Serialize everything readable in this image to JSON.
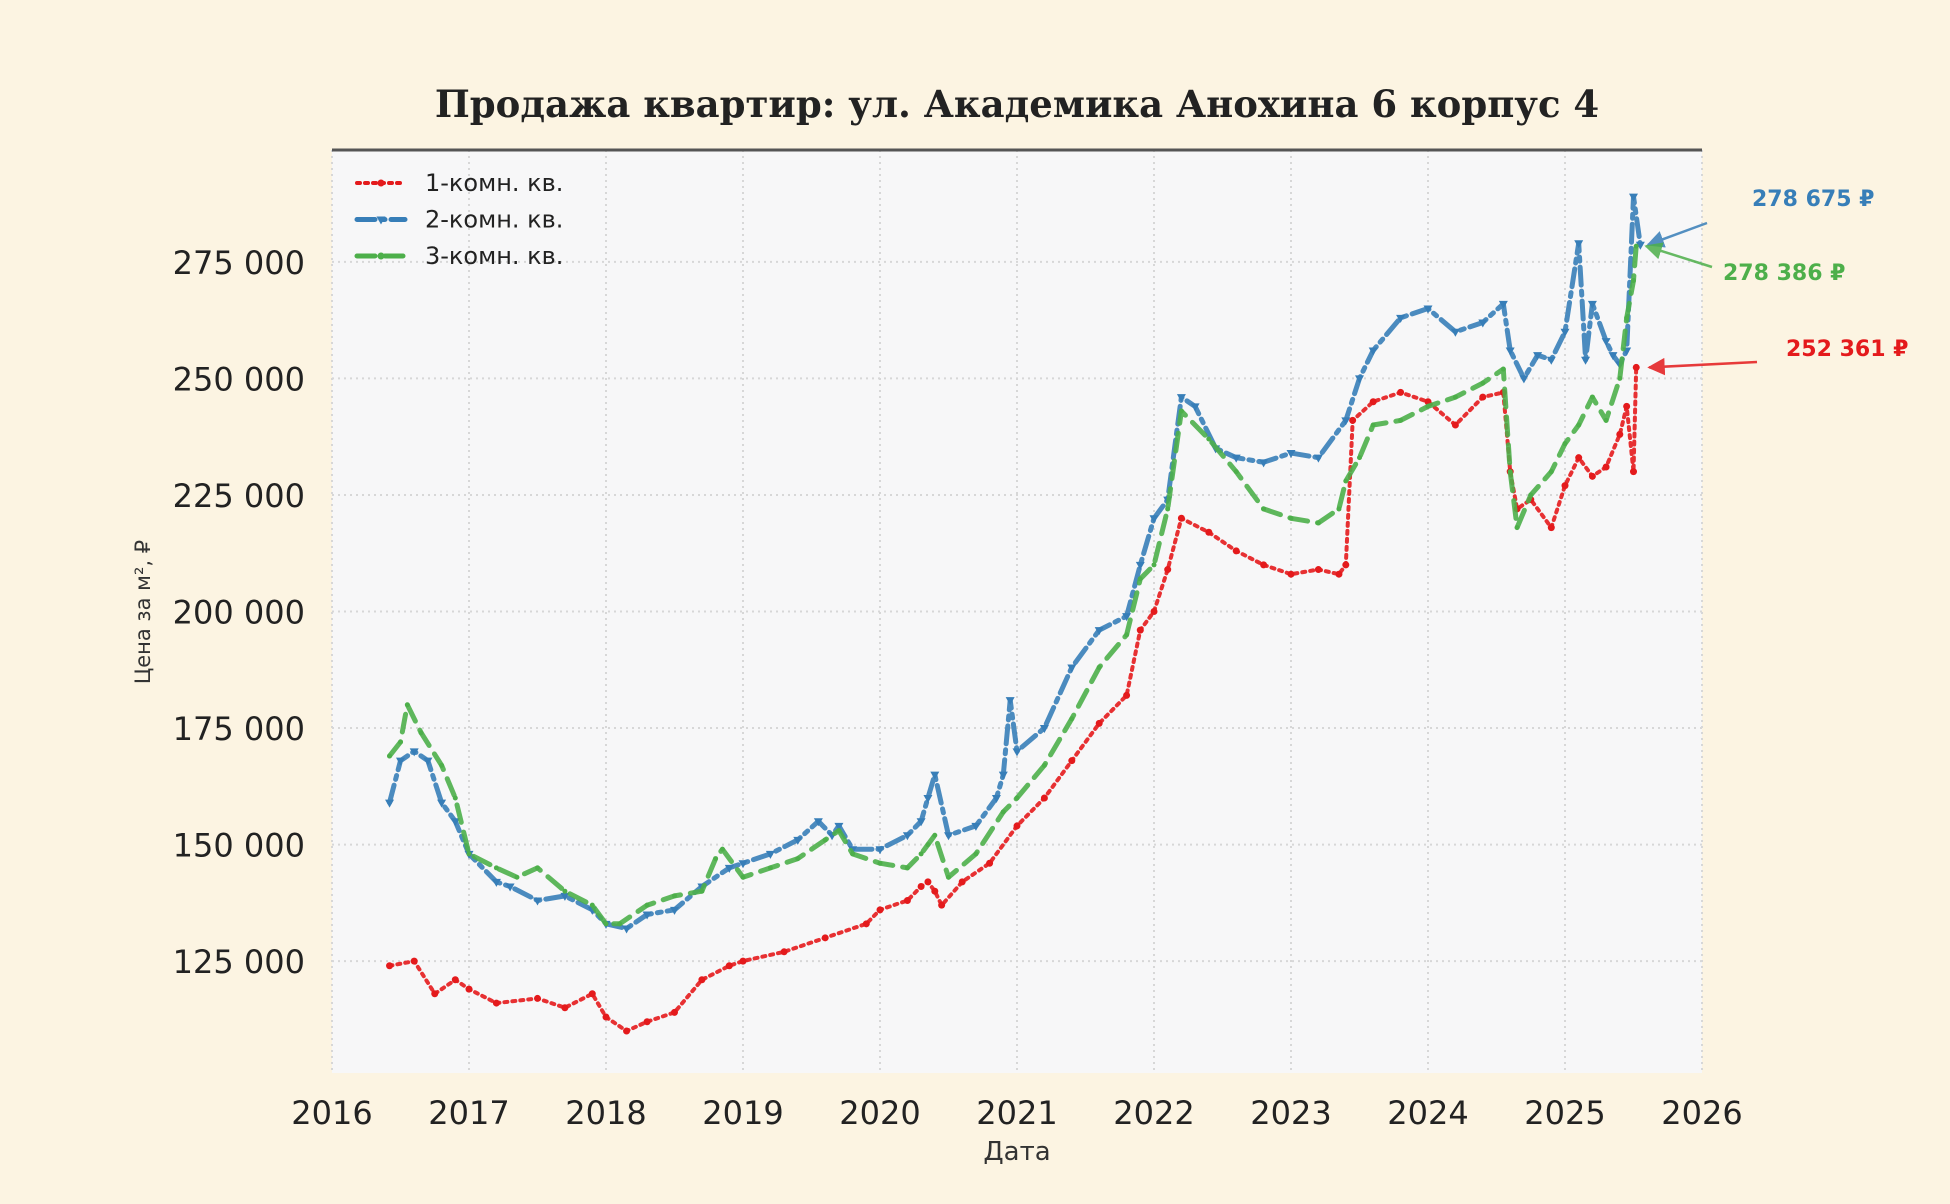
{
  "chart_data": {
    "type": "line",
    "title": "Продажа квартир: ул. Академика Анохина 6 корпус 4",
    "xlabel": "Дата",
    "ylabel": "Цена за м², ₽",
    "xlim": [
      2016.0,
      2026.0
    ],
    "ylim": [
      101000,
      299000
    ],
    "x_ticks": [
      "2016",
      "2017",
      "2018",
      "2019",
      "2020",
      "2021",
      "2022",
      "2023",
      "2024",
      "2025",
      "2026"
    ],
    "y_ticks": [
      "125 000",
      "150 000",
      "175 000",
      "200 000",
      "225 000",
      "250 000",
      "275 000"
    ],
    "grid": true,
    "legend_position": "top-left",
    "series": [
      {
        "name": "1-комн. кв.",
        "color": "#e41a1c",
        "style": "dotted",
        "x": [
          2016.42,
          2016.6,
          2016.75,
          2016.9,
          2017.0,
          2017.2,
          2017.5,
          2017.7,
          2017.9,
          2018.0,
          2018.15,
          2018.3,
          2018.5,
          2018.7,
          2018.9,
          2019.0,
          2019.3,
          2019.6,
          2019.9,
          2020.0,
          2020.2,
          2020.3,
          2020.35,
          2020.4,
          2020.45,
          2020.6,
          2020.8,
          2021.0,
          2021.2,
          2021.4,
          2021.6,
          2021.8,
          2021.9,
          2022.0,
          2022.1,
          2022.2,
          2022.4,
          2022.6,
          2022.8,
          2023.0,
          2023.2,
          2023.35,
          2023.4,
          2023.45,
          2023.6,
          2023.8,
          2024.0,
          2024.2,
          2024.4,
          2024.55,
          2024.6,
          2024.65,
          2024.75,
          2024.9,
          2025.0,
          2025.1,
          2025.2,
          2025.3,
          2025.4,
          2025.45,
          2025.5,
          2025.52
        ],
        "values": [
          124000,
          125000,
          118000,
          121000,
          119000,
          116000,
          117000,
          115000,
          118000,
          113000,
          110000,
          112000,
          114000,
          121000,
          124000,
          125000,
          127000,
          130000,
          133000,
          136000,
          138000,
          141000,
          142000,
          140000,
          137000,
          142000,
          146000,
          154000,
          160000,
          168000,
          176000,
          182000,
          196000,
          200000,
          209000,
          220000,
          217000,
          213000,
          210000,
          208000,
          209000,
          208000,
          210000,
          241000,
          245000,
          247000,
          245000,
          240000,
          246000,
          247000,
          230000,
          222000,
          224000,
          218000,
          227000,
          233000,
          229000,
          231000,
          238000,
          244000,
          230000,
          252361
        ]
      },
      {
        "name": "2-комн. кв.",
        "color": "#377eb8",
        "style": "dashdot",
        "x": [
          2016.42,
          2016.5,
          2016.6,
          2016.7,
          2016.8,
          2016.9,
          2017.0,
          2017.2,
          2017.3,
          2017.5,
          2017.7,
          2017.9,
          2018.0,
          2018.15,
          2018.3,
          2018.5,
          2018.7,
          2018.9,
          2019.0,
          2019.2,
          2019.4,
          2019.55,
          2019.65,
          2019.7,
          2019.8,
          2020.0,
          2020.2,
          2020.3,
          2020.35,
          2020.4,
          2020.5,
          2020.7,
          2020.85,
          2020.9,
          2020.95,
          2021.0,
          2021.2,
          2021.4,
          2021.6,
          2021.8,
          2021.9,
          2022.0,
          2022.1,
          2022.2,
          2022.3,
          2022.45,
          2022.6,
          2022.8,
          2023.0,
          2023.2,
          2023.4,
          2023.5,
          2023.6,
          2023.8,
          2024.0,
          2024.2,
          2024.4,
          2024.55,
          2024.6,
          2024.7,
          2024.8,
          2024.9,
          2025.0,
          2025.1,
          2025.15,
          2025.2,
          2025.3,
          2025.35,
          2025.4,
          2025.45,
          2025.5,
          2025.55
        ],
        "values": [
          159000,
          168000,
          170000,
          168000,
          159000,
          155000,
          148000,
          142000,
          141000,
          138000,
          139000,
          136000,
          133000,
          132000,
          135000,
          136000,
          141000,
          145000,
          146000,
          148000,
          151000,
          155000,
          152000,
          154000,
          149000,
          149000,
          152000,
          155000,
          160000,
          165000,
          152000,
          154000,
          160000,
          165000,
          181000,
          170000,
          175000,
          188000,
          196000,
          199000,
          210000,
          220000,
          224000,
          246000,
          244000,
          235000,
          233000,
          232000,
          234000,
          233000,
          241000,
          250000,
          256000,
          263000,
          265000,
          260000,
          262000,
          266000,
          256000,
          250000,
          255000,
          254000,
          260000,
          279000,
          254000,
          266000,
          258000,
          255000,
          253000,
          256000,
          289000,
          278675
        ]
      },
      {
        "name": "3-комн. кв.",
        "color": "#4daf4a",
        "style": "dashed",
        "x": [
          2016.42,
          2016.5,
          2016.55,
          2016.65,
          2016.8,
          2016.9,
          2017.0,
          2017.2,
          2017.35,
          2017.5,
          2017.7,
          2017.9,
          2018.0,
          2018.1,
          2018.3,
          2018.5,
          2018.7,
          2018.8,
          2018.85,
          2019.0,
          2019.2,
          2019.4,
          2019.6,
          2019.7,
          2019.8,
          2020.0,
          2020.2,
          2020.3,
          2020.35,
          2020.4,
          2020.5,
          2020.7,
          2020.9,
          2021.0,
          2021.2,
          2021.4,
          2021.6,
          2021.8,
          2021.9,
          2022.0,
          2022.1,
          2022.2,
          2022.4,
          2022.6,
          2022.8,
          2023.0,
          2023.2,
          2023.35,
          2023.4,
          2023.5,
          2023.6,
          2023.8,
          2024.0,
          2024.2,
          2024.4,
          2024.55,
          2024.6,
          2024.65,
          2024.75,
          2024.9,
          2025.0,
          2025.1,
          2025.2,
          2025.3,
          2025.4,
          2025.45,
          2025.5,
          2025.52
        ],
        "values": [
          169000,
          172000,
          180000,
          174000,
          167000,
          160000,
          148000,
          145000,
          143000,
          145000,
          140000,
          137000,
          133000,
          133000,
          137000,
          139000,
          140000,
          147000,
          149000,
          143000,
          145000,
          147000,
          151000,
          153000,
          148000,
          146000,
          145000,
          148000,
          150000,
          152000,
          143000,
          148000,
          157000,
          160000,
          167000,
          177000,
          188000,
          195000,
          207000,
          210000,
          222000,
          243000,
          237000,
          230000,
          222000,
          220000,
          219000,
          222000,
          228000,
          233000,
          240000,
          241000,
          244000,
          246000,
          249000,
          252000,
          230000,
          218000,
          225000,
          230000,
          236000,
          240000,
          246000,
          241000,
          250000,
          263000,
          271000,
          278386
        ]
      }
    ],
    "annotations": [
      {
        "text": "278 675 ₽",
        "color": "#377eb8"
      },
      {
        "text": "278 386 ₽",
        "color": "#4daf4a"
      },
      {
        "text": "252 361 ₽",
        "color": "#e41a1c"
      }
    ]
  }
}
